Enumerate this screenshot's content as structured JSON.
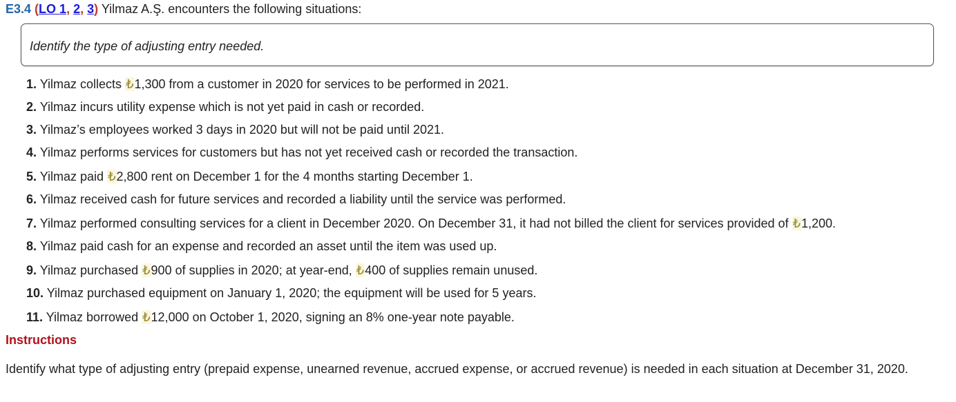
{
  "header": {
    "exercise": "E3.4",
    "open_paren": "(",
    "lo_label": "LO 1",
    "sep1": ",",
    "lo2": "2",
    "sep2": ",",
    "lo3": "3",
    "close_paren": ")",
    "text": " Yilmaz A.Ş. encounters the following situations:"
  },
  "prompt": "Identify the type of adjusting entry needed.",
  "items": [
    {
      "num": "1.",
      "parts": [
        " Yilmaz collects ",
        "₺",
        "1,300 from a customer in 2020 for services to be performed in 2021."
      ]
    },
    {
      "num": "2.",
      "parts": [
        " Yilmaz incurs utility expense which is not yet paid in cash or recorded."
      ]
    },
    {
      "num": "3.",
      "parts": [
        " Yilmaz’s employees worked 3 days in 2020 but will not be paid until 2021."
      ]
    },
    {
      "num": "4.",
      "parts": [
        " Yilmaz performs services for customers but has not yet received cash or recorded the transaction."
      ]
    },
    {
      "num": "5.",
      "parts": [
        " Yilmaz paid ",
        "₺",
        "2,800 rent on December 1 for the 4 months starting December 1."
      ]
    },
    {
      "num": "6.",
      "parts": [
        " Yilmaz received cash for future services and recorded a liability until the service was performed."
      ]
    },
    {
      "num": "7.",
      "parts": [
        " Yilmaz performed consulting services for a client in December 2020. On December 31, it had not billed the client for services provided of ",
        "₺",
        "1,200."
      ]
    },
    {
      "num": "8.",
      "parts": [
        " Yilmaz paid cash for an expense and recorded an asset until the item was used up."
      ]
    },
    {
      "num": "9.",
      "parts": [
        " Yilmaz purchased ",
        "₺",
        "900 of supplies in 2020; at year-end, ",
        "₺",
        "400 of supplies remain unused."
      ]
    },
    {
      "num": "10.",
      "parts": [
        " Yilmaz purchased equipment on January 1, 2020; the equipment will be used for 5 years."
      ]
    },
    {
      "num": "11.",
      "parts": [
        " Yilmaz borrowed ",
        "₺",
        "12,000 on October 1, 2020, signing an 8% one-year note payable."
      ]
    }
  ],
  "instructions": {
    "heading": "Instructions",
    "text": "Identify what type of adjusting entry (prepaid expense, unearned revenue, accrued expense, or accrued revenue) is needed in each situation at December 31, 2020."
  },
  "colors": {
    "exercise_number": "#2566a8",
    "link": "#1a1adb",
    "instructions_heading": "#b0121b"
  }
}
